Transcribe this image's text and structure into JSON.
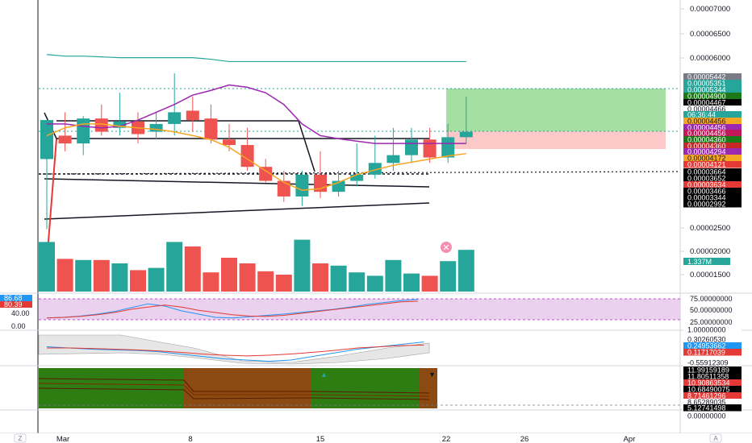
{
  "colors": {
    "bull": "#26a69a",
    "bear": "#ef5350",
    "ma_orange": "#f5a623",
    "ma_purple": "#9c27b0",
    "bb_teal": "#26a69a",
    "rsi_band": "#e1bee7",
    "macd_area": "#e6e6e6",
    "panel_green": "#2e7d12",
    "panel_brown": "#8b4a12",
    "long_profit": "#a5dfa2",
    "long_loss": "#fcc8c8"
  },
  "price_axis": {
    "ticks": [
      "0.00007000",
      "0.00006500",
      "0.00006000",
      "0.00002500",
      "0.00002000",
      "0.00001500"
    ]
  },
  "price_labels": [
    {
      "text": "0.00005442",
      "bg": "#787b86",
      "fg": "#ffffff"
    },
    {
      "text": "0.00005351",
      "bg": "#26a69a",
      "fg": "#ffffff"
    },
    {
      "text": "0.00005344",
      "bg": "#26a69a",
      "fg": "#ffffff"
    },
    {
      "text": "0.00004900",
      "bg": "#1b7a17",
      "fg": "#ffffff"
    },
    {
      "text": "0.00004467",
      "bg": "#000000",
      "fg": "#ffffff"
    },
    {
      "text": "0.00004466",
      "bg": "#ffffff",
      "fg": "#131722"
    },
    {
      "text": "06:36:44",
      "bg": "#26a69a",
      "fg": "#ffffff"
    },
    {
      "text": "0.00004456",
      "bg": "#f5a623",
      "fg": "#131722"
    },
    {
      "text": "0.00004456",
      "bg": "#9c27b0",
      "fg": "#ffffff"
    },
    {
      "text": "0.00004456",
      "bg": "#c2185b",
      "fg": "#ffffff"
    },
    {
      "text": "0.00004360",
      "bg": "#1b7a17",
      "fg": "#ffffff"
    },
    {
      "text": "0.00004360",
      "bg": "#c62828",
      "fg": "#ffffff"
    },
    {
      "text": "0.00004294",
      "bg": "#9c27b0",
      "fg": "#ffffff"
    },
    {
      "text": "0.00004172",
      "bg": "#f5a623",
      "fg": "#131722"
    },
    {
      "text": "0.00004121",
      "bg": "#e53935",
      "fg": "#ffffff"
    },
    {
      "text": "0.00003664",
      "bg": "#000000",
      "fg": "#ffffff"
    },
    {
      "text": "0.00003652",
      "bg": "#000000",
      "fg": "#ffffff"
    },
    {
      "text": "0.00003634",
      "bg": "#e53935",
      "fg": "#ffffff"
    },
    {
      "text": "0.00003466",
      "bg": "#000000",
      "fg": "#ffffff"
    },
    {
      "text": "0.00003344",
      "bg": "#000000",
      "fg": "#ffffff"
    },
    {
      "text": "0.00002992",
      "bg": "#000000",
      "fg": "#ffffff"
    }
  ],
  "volume_label": {
    "text": "1.337M",
    "bg": "#26a69a",
    "fg": "#ffffff"
  },
  "rsi": {
    "left_labels": [
      {
        "text": "86.68",
        "bg": "#2196f3",
        "fg": "#ffffff"
      },
      {
        "text": "80.39",
        "bg": "#e53935",
        "fg": "#ffffff"
      }
    ],
    "left_ticks": [
      "40.00",
      "0.00"
    ],
    "right_ticks": [
      "75.00000000",
      "50.00000000",
      "25.00000000"
    ]
  },
  "macd": {
    "right_labels": [
      {
        "text": "1.00000000",
        "bg": "#ffffff",
        "fg": "#131722"
      },
      {
        "text": "0.30260530",
        "bg": "#ffffff",
        "fg": "#131722"
      },
      {
        "text": "0.24953662",
        "bg": "#2196f3",
        "fg": "#ffffff"
      },
      {
        "text": "0.11717039",
        "bg": "#e53935",
        "fg": "#ffffff"
      },
      {
        "text": "-0.55912309",
        "bg": "#ffffff",
        "fg": "#131722"
      }
    ]
  },
  "bottom_panel": {
    "right_labels": [
      {
        "text": "11.99159189",
        "bg": "#000000",
        "fg": "#ffffff"
      },
      {
        "text": "11.80511358",
        "bg": "#000000",
        "fg": "#ffffff"
      },
      {
        "text": "10.90863534",
        "bg": "#e53935",
        "fg": "#ffffff"
      },
      {
        "text": "10.68490075",
        "bg": "#000000",
        "fg": "#ffffff"
      },
      {
        "text": "8.71461296",
        "bg": "#e53935",
        "fg": "#ffffff"
      },
      {
        "text": "8.65289035",
        "bg": "#ffffff",
        "fg": "#131722"
      },
      {
        "text": "5.12741498",
        "bg": "#000000",
        "fg": "#ffffff"
      },
      {
        "text": "0.00000000",
        "bg": "#ffffff",
        "fg": "#131722"
      }
    ]
  },
  "time_axis": {
    "labels": [
      "Mar",
      "8",
      "15",
      "22",
      "26",
      "Apr"
    ],
    "left_button": "Z",
    "right_button": "A"
  },
  "candles": [
    {
      "o": 4.1,
      "h": 4.6,
      "l": 3.2,
      "c": 4.6,
      "v": 2.2
    },
    {
      "o": 4.4,
      "h": 4.7,
      "l": 4.2,
      "c": 4.3,
      "v": 1.45
    },
    {
      "o": 4.3,
      "h": 4.65,
      "l": 4.15,
      "c": 4.62,
      "v": 1.4
    },
    {
      "o": 4.62,
      "h": 4.8,
      "l": 4.4,
      "c": 4.45,
      "v": 1.4
    },
    {
      "o": 4.5,
      "h": 4.95,
      "l": 4.4,
      "c": 4.58,
      "v": 1.25
    },
    {
      "o": 4.58,
      "h": 4.7,
      "l": 4.3,
      "c": 4.42,
      "v": 0.95
    },
    {
      "o": 4.45,
      "h": 4.7,
      "l": 4.35,
      "c": 4.55,
      "v": 1.05
    },
    {
      "o": 4.55,
      "h": 5.2,
      "l": 4.4,
      "c": 4.7,
      "v": 2.2
    },
    {
      "o": 4.72,
      "h": 4.9,
      "l": 4.45,
      "c": 4.6,
      "v": 2.0
    },
    {
      "o": 4.62,
      "h": 4.8,
      "l": 4.3,
      "c": 4.35,
      "v": 0.85
    },
    {
      "o": 4.35,
      "h": 4.55,
      "l": 4.2,
      "c": 4.28,
      "v": 1.5
    },
    {
      "o": 4.28,
      "h": 4.5,
      "l": 3.95,
      "c": 4.0,
      "v": 1.25
    },
    {
      "o": 4.0,
      "h": 4.1,
      "l": 3.8,
      "c": 3.82,
      "v": 0.9
    },
    {
      "o": 3.82,
      "h": 3.95,
      "l": 3.55,
      "c": 3.62,
      "v": 0.75
    },
    {
      "o": 3.62,
      "h": 3.95,
      "l": 3.5,
      "c": 3.9,
      "v": 2.3
    },
    {
      "o": 3.9,
      "h": 4.2,
      "l": 3.6,
      "c": 3.68,
      "v": 1.25
    },
    {
      "o": 3.68,
      "h": 3.95,
      "l": 3.62,
      "c": 3.82,
      "v": 1.15
    },
    {
      "o": 3.82,
      "h": 4.3,
      "l": 3.75,
      "c": 3.9,
      "v": 0.85
    },
    {
      "o": 3.9,
      "h": 4.4,
      "l": 3.85,
      "c": 4.05,
      "v": 0.7
    },
    {
      "o": 4.05,
      "h": 4.5,
      "l": 3.95,
      "c": 4.15,
      "v": 1.4
    },
    {
      "o": 4.15,
      "h": 4.5,
      "l": 4.05,
      "c": 4.35,
      "v": 0.8
    },
    {
      "o": 4.35,
      "h": 4.5,
      "l": 4.05,
      "c": 4.12,
      "v": 0.7
    },
    {
      "o": 4.12,
      "h": 4.55,
      "l": 4.05,
      "c": 4.38,
      "v": 1.35
    },
    {
      "o": 4.38,
      "h": 4.9,
      "l": 4.3,
      "c": 4.45,
      "v": 1.85
    }
  ],
  "bb_upper": [
    5.44,
    5.42,
    5.42,
    5.41,
    5.4,
    5.4,
    5.4,
    5.4,
    5.4,
    5.38,
    5.35,
    5.35,
    5.35,
    5.35,
    5.35,
    5.35,
    5.35,
    5.35,
    5.35,
    5.35,
    5.35,
    5.35,
    5.35,
    5.35
  ],
  "ma_purple": [
    4.55,
    4.55,
    4.52,
    4.5,
    4.52,
    4.6,
    4.7,
    4.8,
    4.92,
    4.98,
    5.05,
    5.02,
    4.95,
    4.8,
    4.55,
    4.4,
    4.36,
    4.33,
    4.3,
    4.3,
    4.3,
    4.3,
    4.3,
    4.3
  ],
  "ma_orange": [
    4.4,
    4.5,
    4.55,
    4.55,
    4.52,
    4.5,
    4.48,
    4.45,
    4.4,
    4.35,
    4.25,
    4.1,
    3.95,
    3.8,
    3.7,
    3.72,
    3.8,
    3.9,
    3.96,
    4.02,
    4.06,
    4.1,
    4.14,
    4.17
  ],
  "rsi_blue": [
    28,
    30,
    34,
    40,
    48,
    60,
    72,
    65,
    50,
    40,
    30,
    28,
    32,
    36,
    40,
    45,
    50,
    55,
    62,
    70,
    76,
    82,
    86
  ],
  "rsi_red": [
    28,
    30,
    33,
    38,
    45,
    55,
    62,
    68,
    62,
    52,
    45,
    38,
    34,
    33,
    36,
    42,
    48,
    54,
    60,
    66,
    72,
    78,
    80
  ],
  "macd_blue": [
    0.05,
    0.0,
    -0.05,
    -0.08,
    -0.1,
    -0.15,
    -0.25,
    -0.35,
    -0.45,
    -0.5,
    -0.55,
    -0.5,
    -0.35,
    -0.2,
    -0.05,
    0.05,
    0.15,
    0.25
  ],
  "macd_red": [
    0.0,
    0.0,
    -0.02,
    -0.05,
    -0.08,
    -0.12,
    -0.18,
    -0.25,
    -0.3,
    -0.33,
    -0.3,
    -0.25,
    -0.18,
    -0.1,
    0.0,
    0.05,
    0.1,
    0.12
  ]
}
